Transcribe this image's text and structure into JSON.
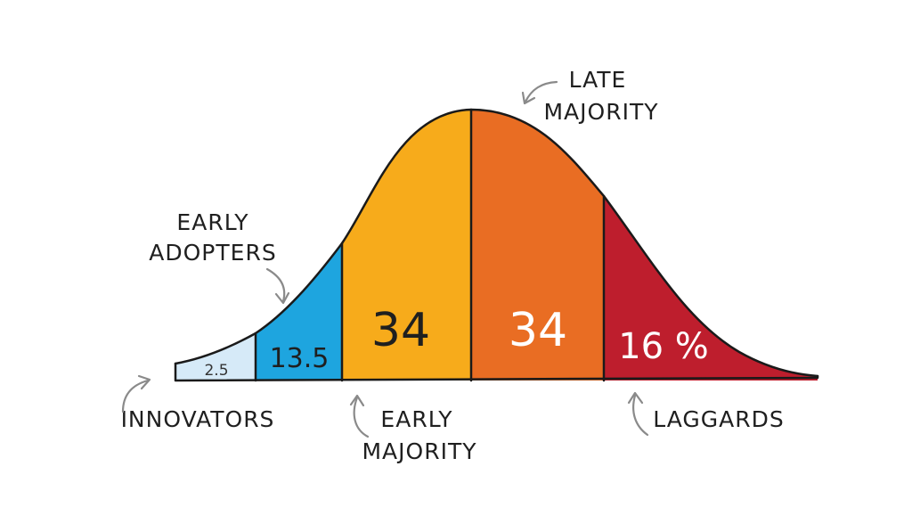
{
  "segments": [
    {
      "value": "2.5",
      "color": "#d6eaf8",
      "text_color": "#333333"
    },
    {
      "value": "13.5",
      "color": "#1ea5df",
      "text_color": "#1f1f1f"
    },
    {
      "value": "34",
      "color": "#f7ab1b",
      "text_color": "#1f1f1f"
    },
    {
      "value": "34",
      "color": "#e96d23",
      "text_color": "#ffffff"
    },
    {
      "value": "16 %",
      "color": "#be1e2d",
      "text_color": "#ffffff"
    }
  ],
  "labels": {
    "innovators": "INNOVATORS",
    "early_adopters": [
      "EARLY",
      "ADOPTERS"
    ],
    "early_majority": [
      "EARLY",
      "MAJORITY"
    ],
    "late_majority": [
      "LATE",
      "MAJORITY"
    ],
    "laggards": "LAGGARDS"
  },
  "colors": {
    "outline": "#1a1a1a",
    "arrow": "#8a8a8a",
    "background": "#ffffff"
  }
}
